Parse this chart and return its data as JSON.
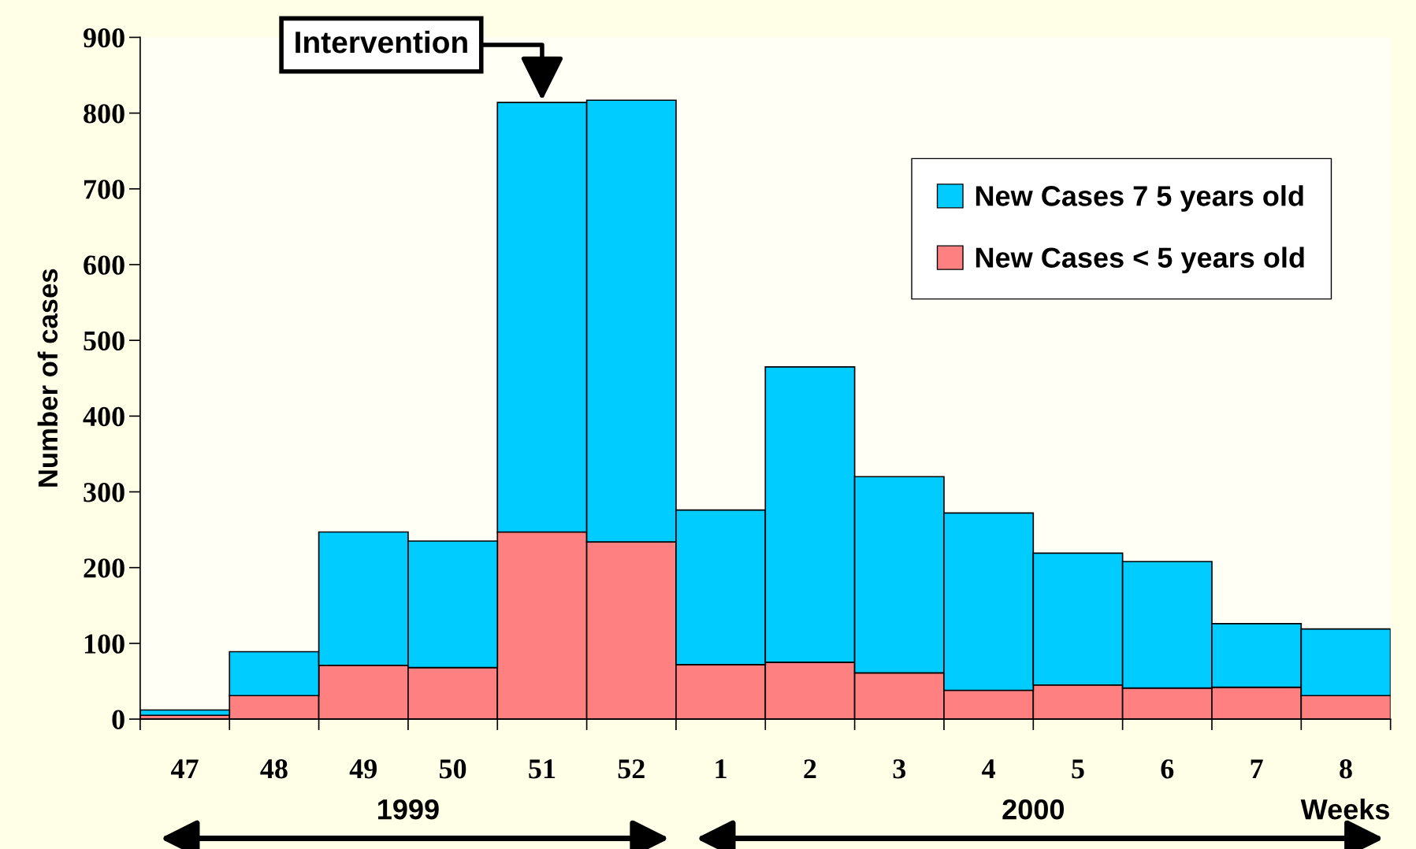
{
  "chart_data": {
    "type": "bar",
    "stacked": true,
    "ylabel": "Number of cases",
    "xlabel": "Weeks",
    "categories": [
      "47",
      "48",
      "49",
      "50",
      "51",
      "52",
      "1",
      "2",
      "3",
      "4",
      "5",
      "6",
      "7",
      "8"
    ],
    "series": [
      {
        "name": "New Cases < 5 years old",
        "color": "#ff8080",
        "values": [
          5,
          31,
          71,
          68,
          247,
          234,
          72,
          75,
          61,
          38,
          45,
          41,
          42,
          31
        ]
      },
      {
        "name": "New Cases 7 5 years old",
        "color": "#00ccff",
        "values": [
          7,
          58,
          176,
          167,
          567,
          583,
          204,
          390,
          259,
          234,
          174,
          167,
          84,
          88
        ]
      }
    ],
    "ylim": [
      0,
      900
    ],
    "yticks": [
      0,
      100,
      200,
      300,
      400,
      500,
      600,
      700,
      800,
      900
    ],
    "grid": false,
    "legend": "top right",
    "annotations": [
      {
        "text": "Intervention",
        "x": "51",
        "y": 814
      },
      "1999",
      "2000"
    ]
  }
}
